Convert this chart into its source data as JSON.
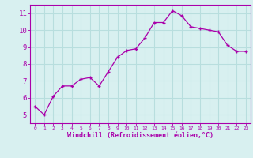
{
  "x": [
    0,
    1,
    2,
    3,
    4,
    5,
    6,
    7,
    8,
    9,
    10,
    11,
    12,
    13,
    14,
    15,
    16,
    17,
    18,
    19,
    20,
    21,
    22,
    23
  ],
  "y": [
    5.5,
    5.0,
    6.1,
    6.7,
    6.7,
    7.1,
    7.2,
    6.7,
    7.55,
    8.4,
    8.8,
    8.9,
    9.55,
    10.45,
    10.45,
    11.15,
    10.85,
    10.2,
    10.1,
    10.0,
    9.9,
    9.1,
    8.75,
    8.75
  ],
  "line_color": "#aa00aa",
  "marker": "+",
  "bg_color": "#d8f0f0",
  "grid_color": "#b8dede",
  "xlabel": "Windchill (Refroidissement éolien,°C)",
  "ylabel_ticks": [
    5,
    6,
    7,
    8,
    9,
    10,
    11
  ],
  "xlim": [
    -0.5,
    23.5
  ],
  "ylim": [
    4.5,
    11.5
  ],
  "tick_color": "#aa00aa",
  "label_color": "#aa00aa"
}
